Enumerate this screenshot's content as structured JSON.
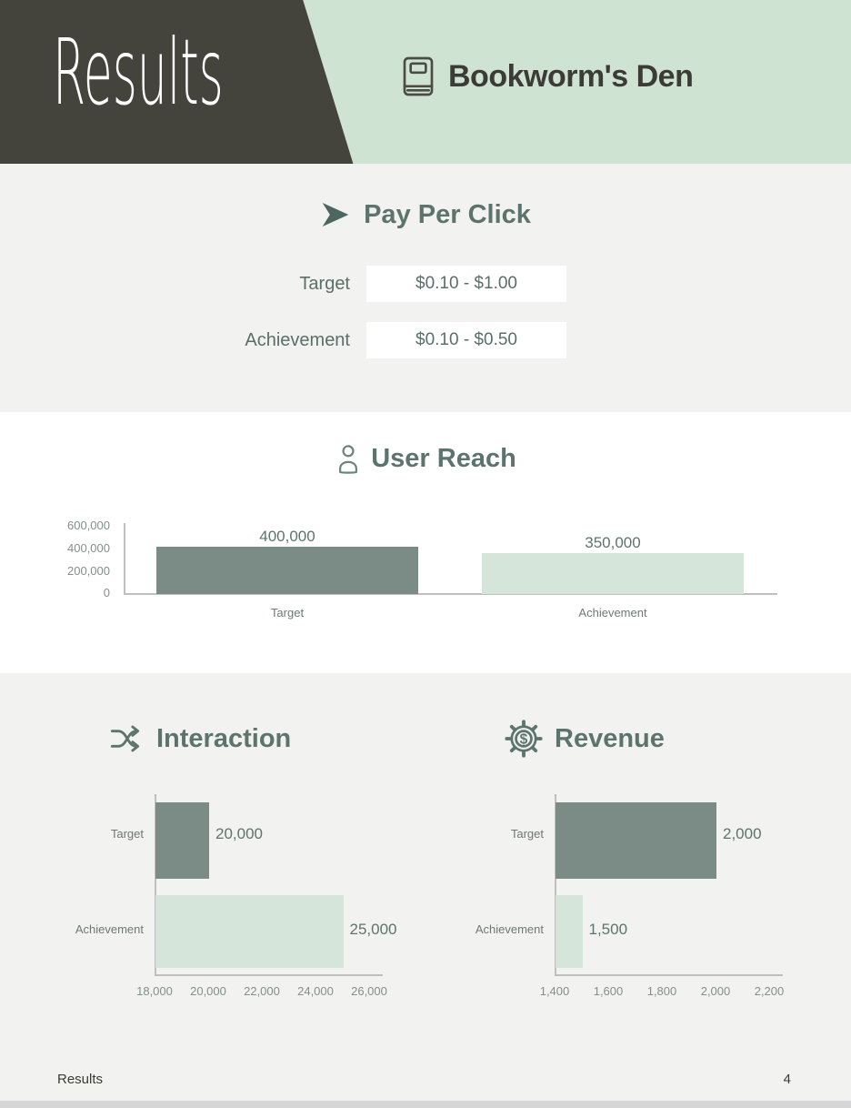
{
  "header": {
    "page_title": "Results",
    "brand_name": "Bookworm's Den"
  },
  "ppc": {
    "title": "Pay Per Click",
    "rows": [
      {
        "label": "Target",
        "value": "$0.10 - $1.00"
      },
      {
        "label": "Achievement",
        "value": "$0.10 - $0.50"
      }
    ]
  },
  "sections": {
    "user_reach_title": "User Reach",
    "interaction_title": "Interaction",
    "revenue_title": "Revenue"
  },
  "chart_data": [
    {
      "type": "bar",
      "orientation": "vertical",
      "title": "User Reach",
      "categories": [
        "Target",
        "Achievement"
      ],
      "values": [
        400000,
        350000
      ],
      "value_labels": [
        "400,000",
        "350,000"
      ],
      "ylim": [
        0,
        600000
      ],
      "yticks": [
        "600,000",
        "400,000",
        "200,000",
        "0"
      ],
      "grid": false,
      "legend": "none",
      "colors": [
        "#7b8b85",
        "#d6e5d9"
      ]
    },
    {
      "type": "bar",
      "orientation": "horizontal",
      "title": "Interaction",
      "categories": [
        "Target",
        "Achievement"
      ],
      "values": [
        20000,
        25000
      ],
      "value_labels": [
        "20,000",
        "25,000"
      ],
      "xlim": [
        18000,
        26000
      ],
      "xticks": [
        "18,000",
        "20,000",
        "22,000",
        "24,000",
        "26,000"
      ],
      "grid": false,
      "legend": "none",
      "colors": [
        "#7b8b85",
        "#d6e5d9"
      ]
    },
    {
      "type": "bar",
      "orientation": "horizontal",
      "title": "Revenue",
      "categories": [
        "Target",
        "Achievement"
      ],
      "values": [
        2000,
        1500
      ],
      "value_labels": [
        "2,000",
        "1,500"
      ],
      "xlim": [
        1400,
        2200
      ],
      "xticks": [
        "1,400",
        "1,600",
        "1,800",
        "2,000",
        "2,200"
      ],
      "grid": false,
      "legend": "none",
      "colors": [
        "#7b8b85",
        "#d6e5d9"
      ]
    }
  ],
  "footer": {
    "label": "Results",
    "page_number": "4"
  },
  "colors": {
    "header_dark": "#45443c",
    "header_green": "#cfe3d2",
    "header_text_dark": "#3c3c36",
    "section_gray": "#f2f2f0",
    "panel_white": "#ffffff",
    "title_green": "#5d746e",
    "bar_dark": "#7b8b85",
    "bar_light": "#d6e5d9",
    "axis_line": "#bfbfbd",
    "tick_text": "#82908a",
    "cat_text": "#6b7a74",
    "value_text": "#5f736d",
    "label_text": "#5a6f6a",
    "footer_text": "#3a3a35",
    "bottom_strip": "#d6d6d6"
  }
}
